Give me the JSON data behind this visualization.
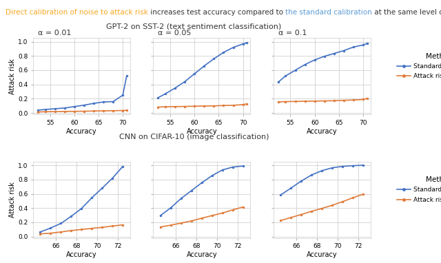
{
  "title_parts": [
    {
      "text": "Direct calibration of noise to attack risk",
      "color": "#f5a623"
    },
    {
      "text": " increases test accuracy compared to ",
      "color": "#333333"
    },
    {
      "text": "the standard calibration",
      "color": "#5b9bd5"
    },
    {
      "text": " at the same level of risk:",
      "color": "#333333"
    }
  ],
  "row_titles": [
    "GPT-2 on SST-2 (text sentiment classification)",
    "CNN on CIFAR-10 (image classification)"
  ],
  "alpha_labels": [
    "α = 0.01",
    "α = 0.05",
    "α = 0.1"
  ],
  "legend_labels": [
    "Standard calibration",
    "Attack risk calibration"
  ],
  "line_colors": [
    "#4472c4",
    "#e07b39"
  ],
  "xlabel": "Accuracy",
  "ylabel": "Attack risk",
  "gpt2_sst2": {
    "alpha_001": {
      "standard_x": [
        52.5,
        54,
        56,
        58,
        60,
        62,
        64,
        66,
        68,
        70,
        70.8
      ],
      "standard_y": [
        0.04,
        0.05,
        0.06,
        0.07,
        0.09,
        0.11,
        0.135,
        0.155,
        0.16,
        0.25,
        0.52
      ],
      "attack_x": [
        52.5,
        54,
        56,
        58,
        60,
        62,
        64,
        66,
        68,
        70,
        70.8
      ],
      "attack_y": [
        0.015,
        0.018,
        0.02,
        0.022,
        0.023,
        0.025,
        0.028,
        0.03,
        0.032,
        0.035,
        0.038
      ]
    },
    "alpha_005": {
      "standard_x": [
        52.5,
        54,
        56,
        58,
        60,
        62,
        64,
        66,
        68,
        70,
        70.8
      ],
      "standard_y": [
        0.215,
        0.27,
        0.35,
        0.44,
        0.55,
        0.66,
        0.76,
        0.85,
        0.92,
        0.97,
        0.985
      ],
      "attack_x": [
        52.5,
        54,
        56,
        58,
        60,
        62,
        64,
        66,
        68,
        70,
        70.8
      ],
      "attack_y": [
        0.083,
        0.088,
        0.09,
        0.092,
        0.095,
        0.098,
        0.1,
        0.105,
        0.108,
        0.118,
        0.128
      ]
    },
    "alpha_01": {
      "standard_x": [
        52.5,
        54,
        56,
        58,
        60,
        62,
        64,
        66,
        68,
        70,
        70.8
      ],
      "standard_y": [
        0.435,
        0.52,
        0.6,
        0.68,
        0.745,
        0.795,
        0.835,
        0.875,
        0.925,
        0.955,
        0.975
      ],
      "attack_x": [
        52.5,
        54,
        56,
        58,
        60,
        62,
        64,
        66,
        68,
        70,
        70.8
      ],
      "attack_y": [
        0.155,
        0.16,
        0.162,
        0.165,
        0.167,
        0.17,
        0.172,
        0.178,
        0.182,
        0.19,
        0.205
      ]
    }
  },
  "cifar10": {
    "alpha_001": {
      "standard_x": [
        64.5,
        65.5,
        66.5,
        67.5,
        68.5,
        69.5,
        70.5,
        71.5,
        72.5
      ],
      "standard_y": [
        0.065,
        0.12,
        0.185,
        0.285,
        0.395,
        0.545,
        0.68,
        0.82,
        0.985
      ],
      "attack_x": [
        64.5,
        65.5,
        66.5,
        67.5,
        68.5,
        69.5,
        70.5,
        71.5,
        72.5
      ],
      "attack_y": [
        0.038,
        0.048,
        0.065,
        0.085,
        0.1,
        0.115,
        0.13,
        0.148,
        0.165
      ]
    },
    "alpha_005": {
      "standard_x": [
        64.5,
        65.5,
        66.5,
        67.5,
        68.5,
        69.5,
        70.5,
        71.5,
        72.5
      ],
      "standard_y": [
        0.295,
        0.405,
        0.535,
        0.645,
        0.755,
        0.855,
        0.935,
        0.975,
        0.99
      ],
      "attack_x": [
        64.5,
        65.5,
        66.5,
        67.5,
        68.5,
        69.5,
        70.5,
        71.5,
        72.5
      ],
      "attack_y": [
        0.135,
        0.16,
        0.19,
        0.22,
        0.258,
        0.295,
        0.33,
        0.375,
        0.415
      ]
    },
    "alpha_01": {
      "standard_x": [
        64.5,
        65.5,
        66.5,
        67.5,
        68.5,
        69.5,
        70.5,
        71.5,
        72.5
      ],
      "standard_y": [
        0.585,
        0.68,
        0.78,
        0.865,
        0.925,
        0.965,
        0.985,
        0.995,
        1.0
      ],
      "attack_x": [
        64.5,
        65.5,
        66.5,
        67.5,
        68.5,
        69.5,
        70.5,
        71.5,
        72.5
      ],
      "attack_y": [
        0.225,
        0.268,
        0.31,
        0.355,
        0.395,
        0.44,
        0.49,
        0.545,
        0.595
      ]
    }
  },
  "gpt2_xlim": [
    51.5,
    71.5
  ],
  "gpt2_xticks": [
    55,
    60,
    65,
    70
  ],
  "cifar10_xlim": [
    63.8,
    73.2
  ],
  "cifar10_xticks": [
    66,
    68,
    70,
    72
  ],
  "ylim": [
    -0.02,
    1.05
  ],
  "yticks": [
    0.0,
    0.2,
    0.4,
    0.6,
    0.8,
    1.0
  ],
  "bg_color": "#ffffff",
  "grid_color": "#d0d0d0",
  "marker": "o",
  "markersize": 2.5,
  "linewidth": 1.2
}
